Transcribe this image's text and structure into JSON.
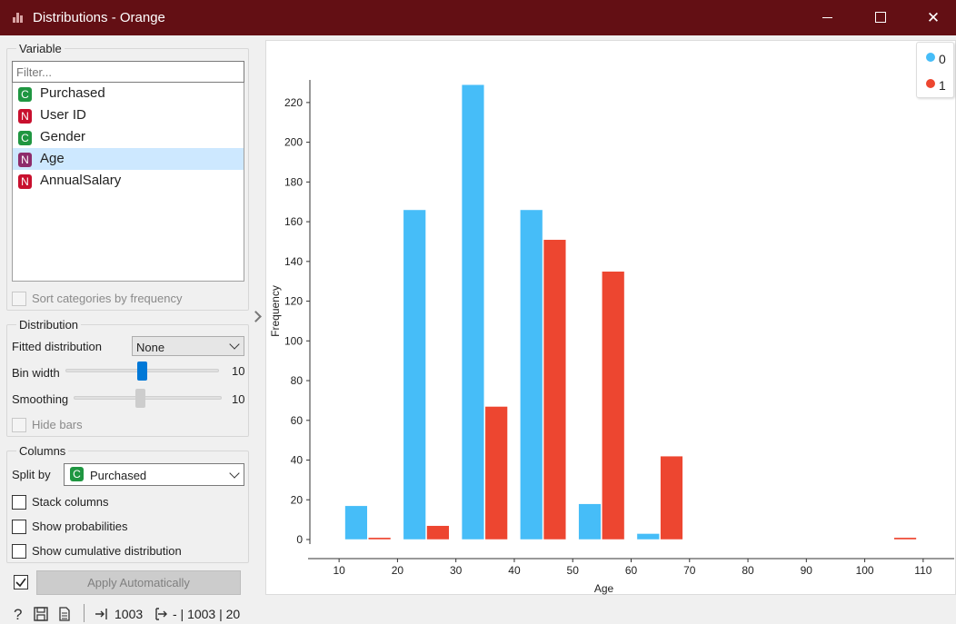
{
  "window": {
    "title": "Distributions - Orange",
    "minimize": "—",
    "maximize": "",
    "close": "✕"
  },
  "variable_box": {
    "title": "Variable",
    "filter_placeholder": "Filter...",
    "items": [
      {
        "type": "C",
        "label": "Purchased",
        "color": "#1f9641",
        "selected": false
      },
      {
        "type": "N",
        "label": "User ID",
        "color": "#c8102e",
        "selected": false
      },
      {
        "type": "C",
        "label": "Gender",
        "color": "#1f9641",
        "selected": false
      },
      {
        "type": "N",
        "label": "Age",
        "color": "#8e2c6b",
        "selected": true
      },
      {
        "type": "N",
        "label": "AnnualSalary",
        "color": "#c8102e",
        "selected": false
      }
    ],
    "sort_label": "Sort categories by frequency"
  },
  "distribution_box": {
    "title": "Distribution",
    "fitted_label": "Fitted distribution",
    "fitted_value": "None",
    "bin_width_label": "Bin width",
    "bin_width_value": "10",
    "bin_width_fraction": 0.5,
    "smoothing_label": "Smoothing",
    "smoothing_value": "10",
    "smoothing_fraction": 0.45,
    "hide_bars_label": "Hide bars"
  },
  "columns_box": {
    "title": "Columns",
    "split_by_label": "Split by",
    "split_by_badge": "C",
    "split_by_value": "Purchased",
    "stack_label": "Stack columns",
    "probabilities_label": "Show probabilities",
    "cumulative_label": "Show cumulative distribution"
  },
  "apply": {
    "label": "Apply Automatically",
    "checked": true
  },
  "status": {
    "input_count": "1003",
    "output_text": "- | 1003 | 20"
  },
  "colors": {
    "series0": "#46bdf8",
    "series1": "#ed4630",
    "titlebar": "#630f14"
  },
  "chart_data": {
    "type": "bar",
    "xlabel": "Age",
    "ylabel": "Frequency",
    "xlim": [
      5,
      115
    ],
    "ylim": [
      0,
      230
    ],
    "x_ticks": [
      10,
      20,
      30,
      40,
      50,
      60,
      70,
      80,
      90,
      100,
      110
    ],
    "y_ticks": [
      0,
      20,
      40,
      60,
      80,
      100,
      120,
      140,
      160,
      180,
      200,
      220
    ],
    "bins": [
      10,
      20,
      30,
      40,
      50,
      60,
      100
    ],
    "bin_width": 10,
    "series": [
      {
        "name": "0",
        "color": "#46bdf8",
        "values": [
          17,
          166,
          229,
          166,
          18,
          3,
          0
        ]
      },
      {
        "name": "1",
        "color": "#ed4630",
        "values": [
          1,
          7,
          67,
          151,
          135,
          42,
          1
        ]
      }
    ],
    "legend": [
      "0",
      "1"
    ],
    "legend_position": "top-right"
  }
}
